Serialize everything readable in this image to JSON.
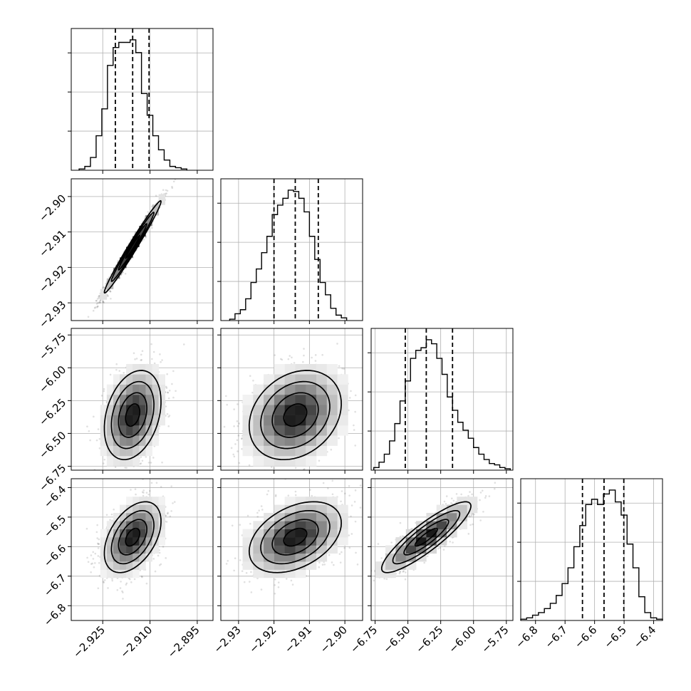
{
  "chart_data": {
    "type": "corner",
    "description": "corner plot of 4 parameters: 1D histograms on diagonal with dashed quantile lines, 2D density contour plots below diagonal",
    "grid": true,
    "parameters": [
      {
        "id": "p0",
        "range": [
          -2.935,
          -2.89
        ],
        "ticks": [
          -2.925,
          -2.91,
          -2.895
        ],
        "tick_labels": [
          "−2.925",
          "−2.910",
          "−2.895"
        ],
        "quantiles": [
          -2.921,
          -2.9155,
          -2.9103
        ],
        "hist": {
          "edges": [
            -2.9325,
            -2.9307,
            -2.9289,
            -2.9271,
            -2.9253,
            -2.9235,
            -2.9217,
            -2.9199,
            -2.9181,
            -2.9163,
            -2.9145,
            -2.9127,
            -2.9109,
            -2.9091,
            -2.9073,
            -2.9055,
            -2.9037,
            -2.9019,
            -2.9001,
            -2.8983
          ],
          "counts": [
            1,
            3,
            10,
            27,
            48,
            82,
            96,
            100,
            100,
            102,
            92,
            60,
            43,
            27,
            16,
            8,
            3,
            2,
            1
          ]
        }
      },
      {
        "id": "p1",
        "range": [
          -2.935,
          -2.895
        ],
        "ticks": [
          -2.93,
          -2.92,
          -2.91,
          -2.9
        ],
        "tick_labels": [
          "−2.93",
          "−2.92",
          "−2.91",
          "−2.90"
        ],
        "quantiles": [
          -2.92,
          -2.914,
          -2.9075
        ],
        "hist": {
          "edges": [
            -2.9325,
            -2.931,
            -2.9295,
            -2.928,
            -2.9265,
            -2.925,
            -2.9235,
            -2.922,
            -2.9205,
            -2.919,
            -2.9175,
            -2.916,
            -2.9145,
            -2.913,
            -2.9115,
            -2.91,
            -2.9085,
            -2.907,
            -2.9055,
            -2.904,
            -2.9025,
            -2.901,
            -2.8995
          ],
          "counts": [
            1,
            5,
            8,
            16,
            28,
            38,
            50,
            62,
            78,
            85,
            90,
            96,
            95,
            90,
            80,
            62,
            45,
            28,
            19,
            9,
            4,
            2
          ]
        }
      },
      {
        "id": "p2",
        "range": [
          -6.78,
          -5.7
        ],
        "ticks": [
          -6.75,
          -6.5,
          -6.25,
          -6.0,
          -5.75
        ],
        "tick_labels": [
          "−6.75",
          "−6.50",
          "−6.25",
          "−6.00",
          "−5.75"
        ],
        "quantiles": [
          -6.52,
          -6.36,
          -6.16
        ],
        "hist": {
          "edges": [
            -6.76,
            -6.72,
            -6.68,
            -6.64,
            -6.6,
            -6.56,
            -6.52,
            -6.48,
            -6.44,
            -6.4,
            -6.36,
            -6.32,
            -6.28,
            -6.24,
            -6.2,
            -6.16,
            -6.12,
            -6.08,
            -6.04,
            -6.0,
            -5.96,
            -5.92,
            -5.88,
            -5.84,
            -5.8,
            -5.76,
            -5.72
          ],
          "counts": [
            2,
            6,
            12,
            22,
            35,
            52,
            67,
            84,
            90,
            92,
            98,
            95,
            84,
            72,
            55,
            45,
            36,
            30,
            24,
            17,
            12,
            8,
            5,
            4,
            2,
            1
          ]
        }
      },
      {
        "id": "p3",
        "range": [
          -6.85,
          -6.37
        ],
        "ticks": [
          -6.8,
          -6.7,
          -6.6,
          -6.5,
          -6.4
        ],
        "tick_labels": [
          "−6.8",
          "−6.7",
          "−6.6",
          "−6.5",
          "−6.4"
        ],
        "quantiles": [
          -6.641,
          -6.568,
          -6.501
        ],
        "hist": {
          "edges": [
            -6.85,
            -6.83,
            -6.81,
            -6.79,
            -6.77,
            -6.75,
            -6.73,
            -6.71,
            -6.69,
            -6.67,
            -6.65,
            -6.63,
            -6.61,
            -6.59,
            -6.57,
            -6.55,
            -6.53,
            -6.51,
            -6.49,
            -6.47,
            -6.45,
            -6.43,
            -6.41,
            -6.39,
            -6.37
          ],
          "counts": [
            1,
            2,
            4,
            6,
            9,
            13,
            19,
            28,
            40,
            56,
            72,
            88,
            92,
            88,
            96,
            99,
            90,
            80,
            58,
            40,
            18,
            6,
            2,
            1
          ]
        }
      }
    ],
    "pairs": [
      {
        "x": 0,
        "y": 1,
        "mean": [
          -2.9155,
          -2.9142
        ],
        "sd": [
          0.0045,
          0.0065
        ],
        "rho": 0.985
      },
      {
        "x": 0,
        "y": 2,
        "mean": [
          -2.9155,
          -6.36
        ],
        "sd": [
          0.0045,
          0.17
        ],
        "rho": 0.3
      },
      {
        "x": 1,
        "y": 2,
        "mean": [
          -2.914,
          -6.36
        ],
        "sd": [
          0.0065,
          0.17
        ],
        "rho": 0.25
      },
      {
        "x": 0,
        "y": 3,
        "mean": [
          -2.9155,
          -6.568
        ],
        "sd": [
          0.0045,
          0.06
        ],
        "rho": 0.45
      },
      {
        "x": 1,
        "y": 3,
        "mean": [
          -2.914,
          -6.568
        ],
        "sd": [
          0.0065,
          0.06
        ],
        "rho": 0.4
      },
      {
        "x": 2,
        "y": 3,
        "mean": [
          -6.36,
          -6.568
        ],
        "sd": [
          0.17,
          0.06
        ],
        "rho": 0.88
      }
    ]
  }
}
